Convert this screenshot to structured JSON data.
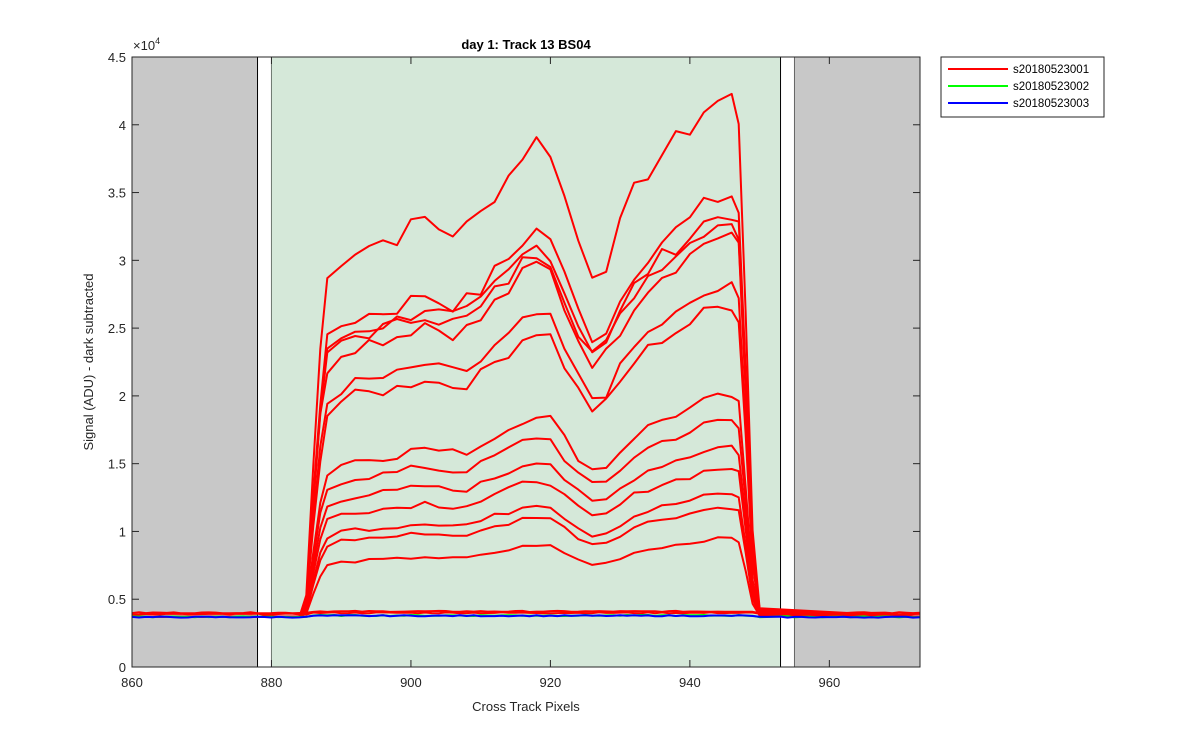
{
  "chart_data": {
    "type": "line",
    "title": "day 1: Track 13  BS04",
    "xlabel": "Cross Track Pixels",
    "ylabel": "Signal (ADU) - dark subtracted",
    "y_exponent_label": "×10",
    "y_exponent_power": "4",
    "xlim": [
      860,
      973
    ],
    "ylim": [
      0,
      4.5
    ],
    "x_ticks": [
      860,
      880,
      900,
      920,
      940,
      960
    ],
    "y_ticks": [
      0,
      0.5,
      1,
      1.5,
      2,
      2.5,
      3,
      3.5,
      4,
      4.5
    ],
    "y_tick_labels": [
      "0",
      "0.5",
      "1",
      "1.5",
      "2",
      "2.5",
      "3",
      "3.5",
      "4",
      "4.5"
    ],
    "grid": false,
    "legend_position": "outside-top-right",
    "regions": [
      {
        "role": "excluded",
        "x": [
          860,
          878
        ],
        "color": "#c8c8c8"
      },
      {
        "role": "boundary",
        "x": [
          878,
          880
        ],
        "color": "#ffffff"
      },
      {
        "role": "active",
        "x": [
          880,
          953
        ],
        "color": "#d5e8d9"
      },
      {
        "role": "boundary",
        "x": [
          953,
          955
        ],
        "color": "#ffffff"
      },
      {
        "role": "excluded",
        "x": [
          955,
          973
        ],
        "color": "#c8c8c8"
      }
    ],
    "profile_x": [
      860,
      884,
      885,
      886,
      887,
      888,
      890,
      892,
      894,
      896,
      898,
      900,
      902,
      904,
      906,
      908,
      910,
      912,
      914,
      916,
      918,
      920,
      922,
      924,
      926,
      928,
      930,
      932,
      934,
      936,
      938,
      940,
      942,
      944,
      946,
      947,
      948,
      949,
      950,
      973
    ],
    "series": [
      {
        "name": "s20180523001",
        "color": "#ff0000",
        "line_levels": [
          4.2,
          3.48,
          3.35,
          3.3,
          3.2,
          2.8,
          2.67,
          2.0,
          1.82,
          1.63,
          1.47,
          1.28,
          1.18,
          0.95,
          0.4,
          0.39
        ]
      },
      {
        "name": "s20180523002",
        "color": "#00ff00",
        "line_levels": [
          0.37
        ]
      },
      {
        "name": "s20180523003",
        "color": "#0000ff",
        "line_levels": [
          0.368
        ]
      }
    ]
  }
}
